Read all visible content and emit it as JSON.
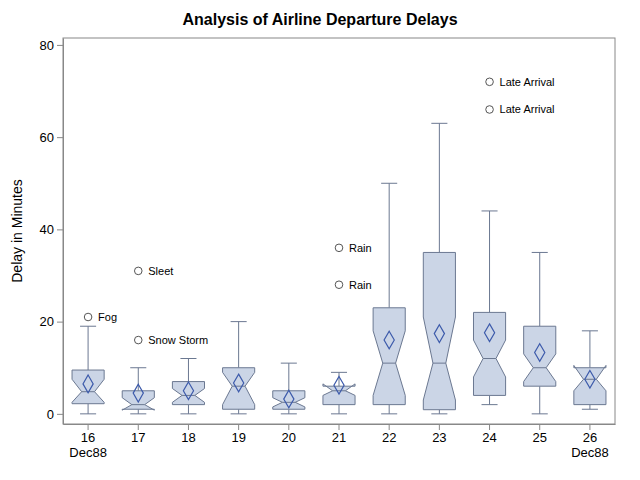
{
  "chart_data": {
    "type": "box",
    "title": "Analysis of Airline Departure Delays",
    "y_label": "Delay in Minutes",
    "categories": [
      "16\nDec88",
      "17",
      "18",
      "19",
      "20",
      "21",
      "22",
      "23",
      "24",
      "25",
      "26\nDec88"
    ],
    "color": "#cbd5e6",
    "marker": "diamond",
    "ylim": [
      -2.2,
      81.5
    ],
    "yticks": [
      0,
      20,
      40,
      60,
      80
    ],
    "grid": false,
    "boxes": [
      {
        "low": 0,
        "q1": 2.2,
        "median": 4.8,
        "q3": 9.5,
        "high": 19,
        "mean": 6.5,
        "notch_low": 2.5,
        "notch_high": 7.5,
        "outliers": [
          {
            "value": 21,
            "label": "Fog"
          }
        ]
      },
      {
        "low": 0,
        "q1": 1,
        "median": 2,
        "q3": 5,
        "high": 10,
        "mean": 4.5,
        "notch_low": 0.8,
        "notch_high": 3.5,
        "outliers": [
          {
            "value": 31,
            "label": "Sleet"
          },
          {
            "value": 16,
            "label": "Snow Storm"
          }
        ]
      },
      {
        "low": 0,
        "q1": 2,
        "median": 4,
        "q3": 7,
        "high": 12,
        "mean": 5,
        "notch_low": 2.5,
        "notch_high": 5.5,
        "outliers": []
      },
      {
        "low": 0,
        "q1": 1,
        "median": 6,
        "q3": 10,
        "high": 20,
        "mean": 6.7,
        "notch_low": 2,
        "notch_high": 9,
        "outliers": []
      },
      {
        "low": 0,
        "q1": 1,
        "median": 2.5,
        "q3": 5,
        "high": 11,
        "mean": 3.2,
        "notch_low": 1.5,
        "notch_high": 3.5,
        "outliers": []
      },
      {
        "low": 0,
        "q1": 2,
        "median": 5,
        "q3": 6,
        "high": 9,
        "mean": 6.2,
        "notch_low": 4,
        "notch_high": 6.5,
        "outliers": [
          {
            "value": 36,
            "label": "Rain"
          },
          {
            "value": 28,
            "label": "Rain"
          }
        ]
      },
      {
        "low": 0,
        "q1": 2,
        "median": 11,
        "q3": 23,
        "high": 50,
        "mean": 16,
        "notch_low": 4,
        "notch_high": 18,
        "outliers": []
      },
      {
        "low": 0,
        "q1": 0.9,
        "median": 11,
        "q3": 35,
        "high": 63,
        "mean": 17.4,
        "notch_low": 3,
        "notch_high": 21,
        "outliers": []
      },
      {
        "low": 2,
        "q1": 4,
        "median": 12,
        "q3": 22,
        "high": 44,
        "mean": 17.6,
        "notch_low": 8,
        "notch_high": 16,
        "outliers": [
          {
            "value": 72,
            "label": "Late Arrival"
          },
          {
            "value": 66,
            "label": "Late Arrival"
          }
        ]
      },
      {
        "low": 0,
        "q1": 6,
        "median": 10,
        "q3": 19,
        "high": 35,
        "mean": 13.3,
        "notch_low": 7,
        "notch_high": 13,
        "outliers": []
      },
      {
        "low": 1,
        "q1": 2,
        "median": 7.5,
        "q3": 10,
        "high": 18,
        "mean": 7.5,
        "notch_low": 5,
        "notch_high": 10.5,
        "outliers": []
      }
    ]
  }
}
